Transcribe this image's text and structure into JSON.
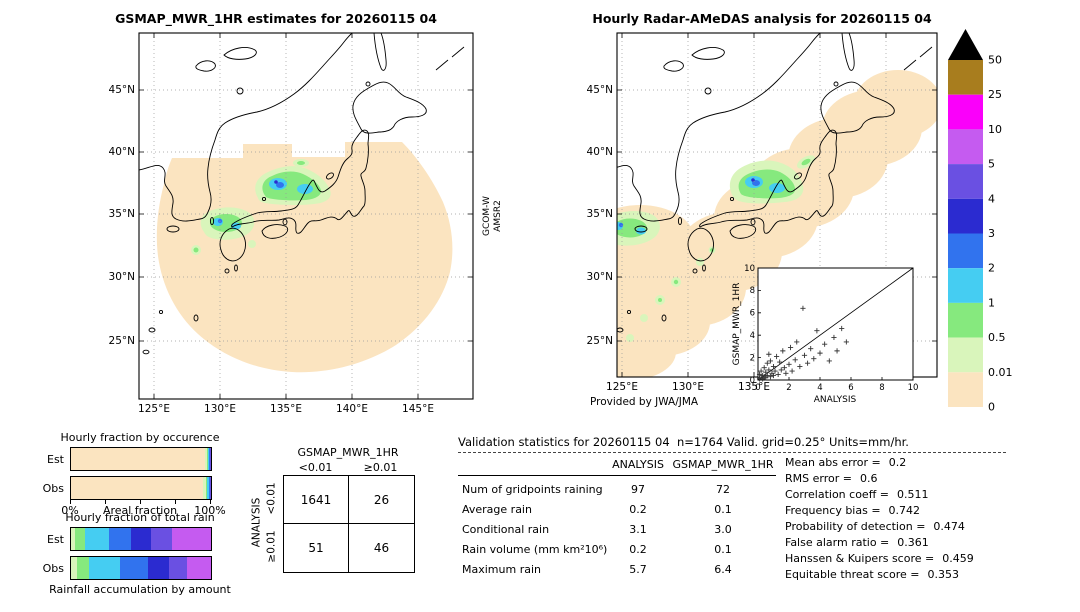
{
  "sensor": {
    "line1": "GCOM-W",
    "line2": "AMSR2"
  },
  "chart_data": [
    {
      "type": "heatmap",
      "title": "GSMAP_MWR_1HR estimates for 20260115 04",
      "units": "mm/hr",
      "x_axis": {
        "label": "longitude",
        "ticks": [
          "125°E",
          "130°E",
          "135°E",
          "140°E",
          "145°E"
        ]
      },
      "y_axis": {
        "label": "latitude",
        "ticks": [
          "45°N",
          "40°N",
          "35°N",
          "30°N",
          "25°N"
        ]
      },
      "colorbar": {
        "breaks": [
          "0",
          "0.01",
          "0.5",
          "1",
          "2",
          "3",
          "4",
          "5",
          "10",
          "25",
          "50"
        ],
        "colors_low_to_high": [
          "#fbe4c0",
          "#d9f5bb",
          "#86e97e",
          "#45cdf2",
          "#3173ee",
          "#2b2bd0",
          "#6a50e2",
          "#c55bf0",
          "#fa00fa",
          "#a87d1e"
        ],
        "over": "#000000"
      }
    },
    {
      "type": "heatmap",
      "title": "Hourly Radar-AMeDAS analysis for 20260115 04",
      "units": "mm/hr",
      "x_axis": {
        "label": "longitude",
        "ticks": [
          "125°E",
          "130°E",
          "135°E"
        ]
      },
      "y_axis": {
        "label": "latitude",
        "ticks": [
          "45°N",
          "40°N",
          "35°N",
          "30°N",
          "25°N"
        ]
      },
      "credit": "Provided by JWA/JMA"
    },
    {
      "type": "scatter",
      "xlabel": "ANALYSIS",
      "ylabel": "GSMAP_MWR_1HR",
      "xlim": [
        0,
        10
      ],
      "ylim": [
        0,
        10
      ],
      "x_ticks": [
        "0",
        "2",
        "4",
        "6",
        "8",
        "10"
      ],
      "y_ticks": [
        "0",
        "2",
        "4",
        "6",
        "8",
        "10"
      ],
      "identity_line": true,
      "marker": "+",
      "points": [
        [
          0.1,
          0.1
        ],
        [
          0.1,
          0.5
        ],
        [
          0.2,
          0.2
        ],
        [
          0.2,
          0.8
        ],
        [
          0.3,
          0.1
        ],
        [
          0.3,
          0.4
        ],
        [
          0.4,
          0.3
        ],
        [
          0.4,
          1.1
        ],
        [
          0.5,
          0.2
        ],
        [
          0.5,
          0.7
        ],
        [
          0.6,
          0.4
        ],
        [
          0.6,
          1.5
        ],
        [
          0.7,
          0.9
        ],
        [
          0.7,
          2.3
        ],
        [
          0.8,
          0.3
        ],
        [
          0.8,
          1.7
        ],
        [
          0.9,
          0.6
        ],
        [
          1.0,
          0.4
        ],
        [
          1.0,
          1.2
        ],
        [
          1.1,
          0.8
        ],
        [
          1.2,
          2.1
        ],
        [
          1.3,
          0.5
        ],
        [
          1.4,
          1.6
        ],
        [
          1.5,
          0.9
        ],
        [
          1.6,
          2.6
        ],
        [
          1.7,
          1.1
        ],
        [
          1.8,
          0.6
        ],
        [
          2.0,
          1.4
        ],
        [
          2.1,
          2.9
        ],
        [
          2.2,
          0.8
        ],
        [
          2.4,
          1.8
        ],
        [
          2.5,
          3.4
        ],
        [
          2.7,
          1.2
        ],
        [
          2.9,
          6.4
        ],
        [
          3.0,
          2.2
        ],
        [
          3.2,
          1.5
        ],
        [
          3.4,
          2.8
        ],
        [
          3.6,
          1.9
        ],
        [
          3.8,
          4.4
        ],
        [
          4.0,
          2.4
        ],
        [
          4.3,
          3.2
        ],
        [
          4.6,
          1.7
        ],
        [
          4.9,
          3.8
        ],
        [
          5.1,
          2.6
        ],
        [
          5.4,
          4.6
        ],
        [
          5.7,
          3.4
        ]
      ]
    },
    {
      "type": "bar",
      "title": "Hourly fraction by occurence",
      "stacked": true,
      "orientation": "horizontal",
      "categories": [
        "Est",
        "Obs"
      ],
      "axis": {
        "left": "0%",
        "label": "Areal fraction",
        "right": "100%"
      },
      "series": [
        {
          "name": "<0.01",
          "color": "#fbe4c0",
          "values": [
            95.9,
            94.5
          ]
        },
        {
          "name": "0.01–0.5",
          "color": "#d9f5bb",
          "values": [
            1.3,
            1.7
          ]
        },
        {
          "name": "0.5–1",
          "color": "#86e97e",
          "values": [
            0.8,
            1.1
          ]
        },
        {
          "name": "1–2",
          "color": "#45cdf2",
          "values": [
            0.8,
            1.1
          ]
        },
        {
          "name": "2–3",
          "color": "#3173ee",
          "values": [
            0.5,
            0.7
          ]
        },
        {
          "name": "3–4",
          "color": "#2b2bd0",
          "values": [
            0.3,
            0.4
          ]
        },
        {
          "name": "4–5",
          "color": "#6a50e2",
          "values": [
            0.2,
            0.3
          ]
        },
        {
          "name": "5–10",
          "color": "#c55bf0",
          "values": [
            0.2,
            0.2
          ]
        }
      ]
    },
    {
      "type": "bar",
      "title": "Hourly fraction of total rain",
      "stacked": true,
      "orientation": "horizontal",
      "categories": [
        "Est",
        "Obs"
      ],
      "footer": "Rainfall accumulation by amount",
      "series": [
        {
          "name": "0.01–0.5",
          "color": "#d9f5bb",
          "values": [
            3,
            4
          ]
        },
        {
          "name": "0.5–1",
          "color": "#86e97e",
          "values": [
            7,
            9
          ]
        },
        {
          "name": "1–2",
          "color": "#45cdf2",
          "values": [
            17,
            22
          ]
        },
        {
          "name": "2–3",
          "color": "#3173ee",
          "values": [
            16,
            20
          ]
        },
        {
          "name": "3–4",
          "color": "#2b2bd0",
          "values": [
            14,
            15
          ]
        },
        {
          "name": "4–5",
          "color": "#6a50e2",
          "values": [
            15,
            13
          ]
        },
        {
          "name": "5–10",
          "color": "#c55bf0",
          "values": [
            28,
            17
          ]
        }
      ]
    },
    {
      "type": "table",
      "title": "GSMAP_MWR_1HR",
      "row_axis": "ANALYSIS",
      "col_labels": [
        "<0.01",
        "≥0.01"
      ],
      "row_labels": [
        "<0.01",
        "≥0.01"
      ],
      "cells": [
        [
          "1641",
          "26"
        ],
        [
          "51",
          "46"
        ]
      ]
    },
    {
      "type": "table",
      "title": "Validation statistics for 20260115 04  n=1764 Valid. grid=0.25° Units=mm/hr.",
      "col_headers": [
        "ANALYSIS",
        "GSMAP_MWR_1HR"
      ],
      "rows": [
        {
          "label": "Num of gridpoints raining",
          "analysis": "97",
          "gsmap": "72"
        },
        {
          "label": "Average rain",
          "analysis": "0.2",
          "gsmap": "0.1"
        },
        {
          "label": "Conditional rain",
          "analysis": "3.1",
          "gsmap": "3.0"
        },
        {
          "label": "Rain volume (mm km²10⁶)",
          "analysis": "0.2",
          "gsmap": "0.1"
        },
        {
          "label": "Maximum rain",
          "analysis": "5.7",
          "gsmap": "6.4"
        }
      ],
      "scores": [
        {
          "label": "Mean abs error =",
          "value": "0.2"
        },
        {
          "label": "RMS error =",
          "value": "0.6"
        },
        {
          "label": "Correlation coeff =",
          "value": "0.511"
        },
        {
          "label": "Frequency bias =",
          "value": "0.742"
        },
        {
          "label": "Probability of detection =",
          "value": "0.474"
        },
        {
          "label": "False alarm ratio =",
          "value": "0.361"
        },
        {
          "label": "Hanssen & Kuipers score =",
          "value": "0.459"
        },
        {
          "label": "Equitable threat score =",
          "value": "0.353"
        }
      ]
    }
  ]
}
